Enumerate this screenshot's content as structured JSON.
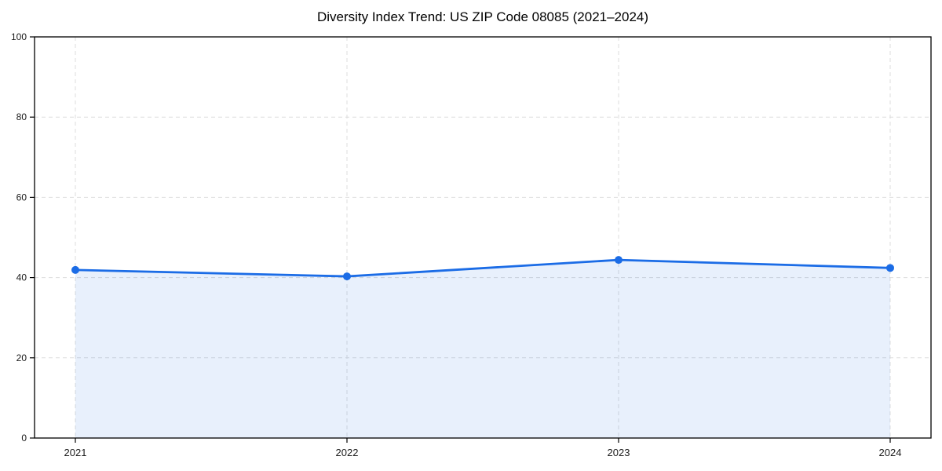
{
  "page": {
    "background_color": "#ffffff"
  },
  "chart_data": {
    "type": "line",
    "title": "Diversity Index Trend: US ZIP Code 08085 (2021–2024)",
    "x": [
      "2021",
      "2022",
      "2023",
      "2024"
    ],
    "series": [
      {
        "name": "Diversity Index",
        "values": [
          41.9,
          40.3,
          44.4,
          42.4
        ]
      }
    ],
    "xlabel": "",
    "ylabel": "",
    "ylim": [
      0,
      100
    ],
    "yticks": [
      0,
      20,
      40,
      60,
      80,
      100
    ],
    "grid": true,
    "grid_style": "dashed",
    "legend": "none",
    "marker": "circle",
    "area_fill": true,
    "colors": {
      "line": "#1b6ce6",
      "marker": "#1b6ce6",
      "area_fill": "rgba(27,108,230,0.10)",
      "gridline": "#dddddd",
      "spine": "#000000",
      "tick_text": "#1a1a1a",
      "title_text": "#000000"
    }
  }
}
